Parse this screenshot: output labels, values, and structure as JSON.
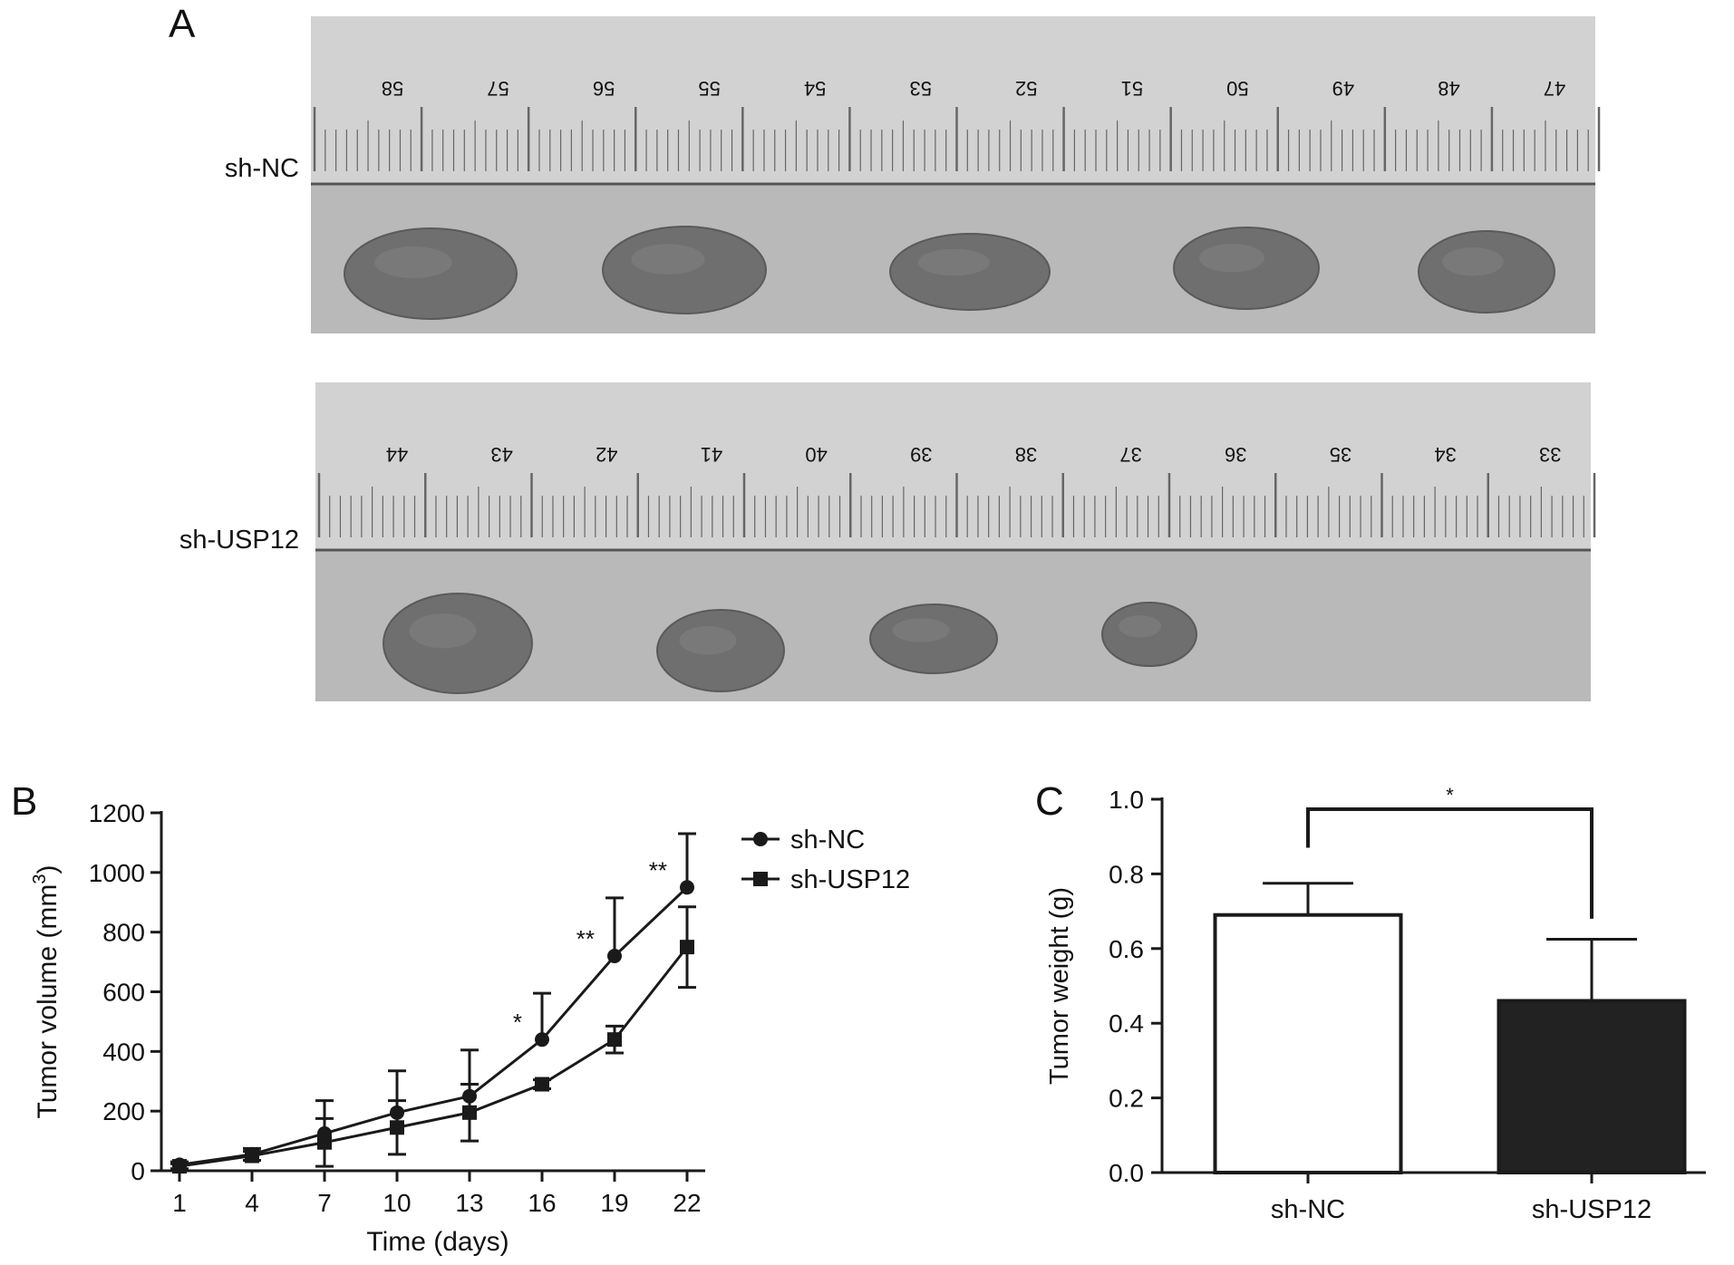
{
  "panel_a": {
    "letter": "A",
    "rows": [
      {
        "label": "sh-NC",
        "ruler_numbers": [
          "58",
          "57",
          "56",
          "55",
          "54",
          "53",
          "52",
          "51",
          "50",
          "49",
          "48",
          "47"
        ],
        "tumor_count": 5
      },
      {
        "label": "sh-USP12",
        "ruler_numbers": [
          "44",
          "43",
          "42",
          "41",
          "40",
          "39",
          "38",
          "37",
          "36",
          "35",
          "34",
          "33"
        ],
        "tumor_count": 4
      }
    ]
  },
  "panel_b": {
    "letter": "B"
  },
  "panel_c": {
    "letter": "C"
  },
  "colors": {
    "ink": "#1a1a1a",
    "photo_bg": "#b9b9b9",
    "ruler": "#d2d2d2",
    "tumor": "#6f6f6f",
    "bar_nc": "#ffffff",
    "bar_usp12": "#222222"
  },
  "chart_data": [
    {
      "type": "line",
      "panel": "B",
      "xlabel": "Time (days)",
      "ylabel": "Tumor volume (mm",
      "ylabel_sup": "3",
      "ylabel_close": ")",
      "x": [
        1,
        4,
        7,
        10,
        13,
        16,
        19,
        22
      ],
      "xticks": [
        "1",
        "4",
        "7",
        "10",
        "13",
        "16",
        "19",
        "22"
      ],
      "ylim": [
        0,
        1200
      ],
      "yticks": [
        "0",
        "200",
        "400",
        "600",
        "800",
        "1000",
        "1200"
      ],
      "series": [
        {
          "name": "sh-NC",
          "marker": "circle",
          "values": [
            20,
            55,
            125,
            195,
            250,
            440,
            720,
            950
          ],
          "errors": [
            10,
            20,
            110,
            140,
            155,
            155,
            195,
            180
          ]
        },
        {
          "name": "sh-USP12",
          "marker": "square",
          "values": [
            15,
            50,
            95,
            145,
            195,
            290,
            440,
            750
          ],
          "errors": [
            8,
            15,
            80,
            90,
            95,
            15,
            45,
            135
          ]
        }
      ],
      "significance": [
        {
          "x": 16,
          "label": "*"
        },
        {
          "x": 19,
          "label": "**"
        },
        {
          "x": 22,
          "label": "**"
        }
      ],
      "legend": "right"
    },
    {
      "type": "bar",
      "panel": "C",
      "categories": [
        "sh-NC",
        "sh-USP12"
      ],
      "values": [
        0.69,
        0.46
      ],
      "errors": [
        0.085,
        0.165
      ],
      "ylabel": "Tumor weight (g)",
      "ylim": [
        0,
        1.0
      ],
      "yticks": [
        "0.0",
        "0.2",
        "0.4",
        "0.6",
        "0.8",
        "1.0"
      ],
      "significance": "*"
    }
  ]
}
